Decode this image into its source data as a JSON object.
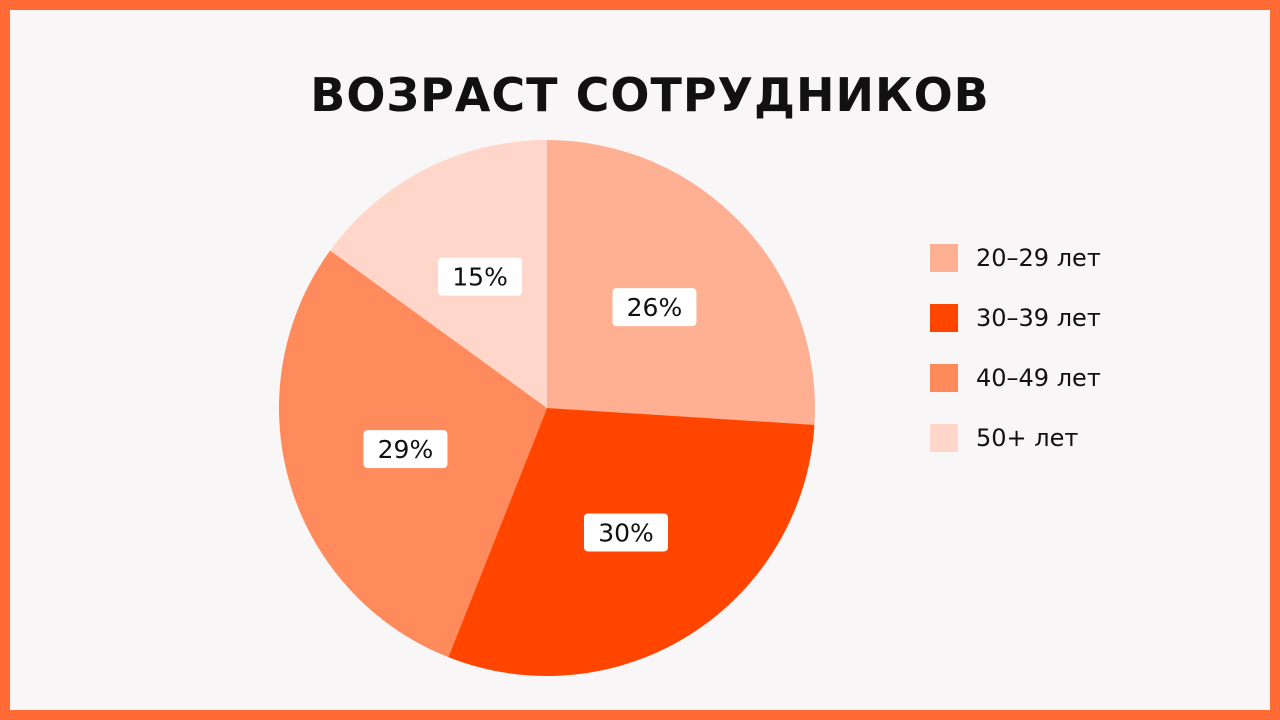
{
  "chart_data": {
    "type": "pie",
    "title": "ВОЗРАСТ СОТРУДНИКОВ",
    "categories": [
      "20–29 лет",
      "30–39 лет",
      "40–49 лет",
      "50+ лет"
    ],
    "values": [
      26,
      30,
      29,
      15
    ],
    "value_labels": [
      "26%",
      "30%",
      "29%",
      "15%"
    ],
    "colors": [
      "#FFB093",
      "#FF4500",
      "#FF8A5B",
      "#FFD6C9"
    ],
    "start_angle": "12 o'clock",
    "direction": "clockwise",
    "legend_position": "right"
  },
  "colors": {
    "frame": "#FF6B35",
    "background": "#F8F6F7",
    "text": "#111111",
    "label_box": "#FFFFFF"
  }
}
